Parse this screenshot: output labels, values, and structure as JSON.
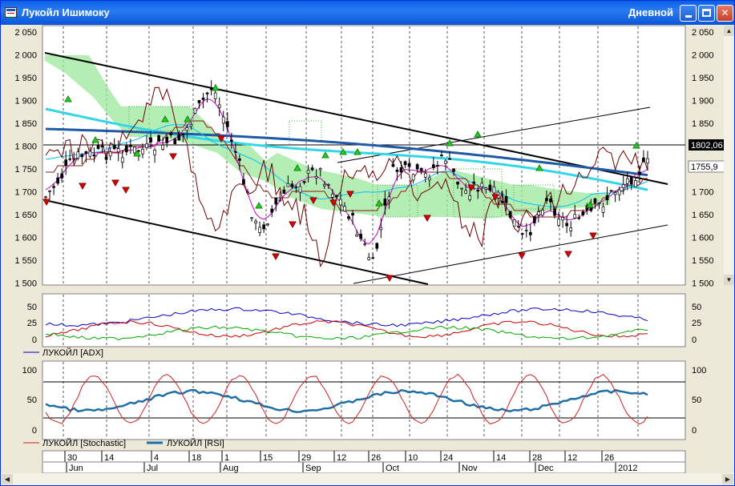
{
  "window": {
    "title": "Лукойл Ишимоку",
    "period": "Дневной"
  },
  "price_axis": {
    "labels": [
      "2 050",
      "2 000",
      "1 950",
      "1 900",
      "1 850",
      "1 800",
      "1 750",
      "1 700",
      "1 650",
      "1 600",
      "1 550",
      "1 500"
    ],
    "last_price": "1802,06",
    "marker_value": "1755,9"
  },
  "adx_panel": {
    "labels": [
      "50",
      "25",
      "0"
    ],
    "legend": "ЛУКОЙЛ [ADX]"
  },
  "osc_panel": {
    "labels": [
      "100",
      "50",
      "0"
    ],
    "legend_stochastic": "ЛУКОЙЛ [Stochastic]",
    "legend_rsi": "ЛУКОЙЛ [RSI]"
  },
  "time_axis": {
    "days": [
      "30",
      "14",
      "4",
      "18",
      "1",
      "15",
      "29",
      "12",
      "26",
      "10",
      "24",
      "14",
      "28",
      "12",
      "26"
    ],
    "months": [
      "Jun",
      "Jul",
      "Aug",
      "Sep",
      "Oct",
      "Nov",
      "Dec",
      "2012"
    ]
  },
  "colors": {
    "accent": "#0a5fe8",
    "candle": "#000000",
    "tenkan": "#cc00cc",
    "kijun": "#8b1a1a",
    "senkou": "#00bfff",
    "trend": "#1f5aa6",
    "up_arrow": "#22cc22",
    "down_arrow": "#dd0000"
  },
  "icons": [
    "app-chart-icon",
    "minimize-icon",
    "maximize-icon",
    "close-icon",
    "scroll-up-icon",
    "scroll-down-icon",
    "scroll-left-icon",
    "scroll-right-icon"
  ]
}
